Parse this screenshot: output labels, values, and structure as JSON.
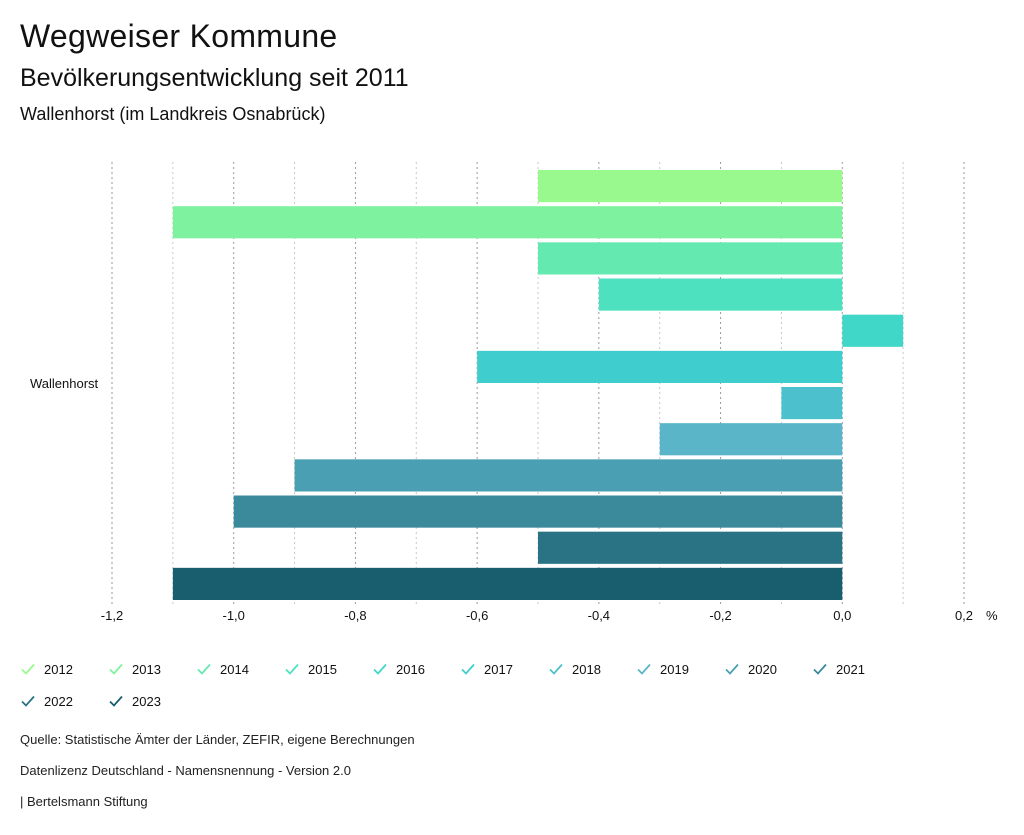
{
  "header": {
    "title": "Wegweiser Kommune",
    "subtitle": "Bevölkerungsentwicklung seit 2011",
    "region": "Wallenhorst (im Landkreis Osnabrück)"
  },
  "chart_data": {
    "type": "bar",
    "orientation": "horizontal",
    "categories": [
      "Wallenhorst"
    ],
    "series": [
      {
        "name": "2012",
        "values": [
          -0.5
        ],
        "color": "#9af98e"
      },
      {
        "name": "2013",
        "values": [
          -1.1
        ],
        "color": "#7ff2a0"
      },
      {
        "name": "2014",
        "values": [
          -0.5
        ],
        "color": "#64e9b0"
      },
      {
        "name": "2015",
        "values": [
          -0.4
        ],
        "color": "#4de1c0"
      },
      {
        "name": "2016",
        "values": [
          0.1
        ],
        "color": "#40d6c8"
      },
      {
        "name": "2017",
        "values": [
          -0.6
        ],
        "color": "#40cdce"
      },
      {
        "name": "2018",
        "values": [
          -0.1
        ],
        "color": "#4dc0cd"
      },
      {
        "name": "2019",
        "values": [
          -0.3
        ],
        "color": "#5ab5c8"
      },
      {
        "name": "2020",
        "values": [
          -0.9
        ],
        "color": "#4aa0b2"
      },
      {
        "name": "2021",
        "values": [
          -1.0
        ],
        "color": "#3a8a9c"
      },
      {
        "name": "2022",
        "values": [
          -0.5
        ],
        "color": "#2a7385"
      },
      {
        "name": "2023",
        "values": [
          -1.1
        ],
        "color": "#195e6e"
      }
    ],
    "xlim": [
      -1.2,
      0.2
    ],
    "x_ticks": [
      "-1,2",
      "-1,0",
      "-0,8",
      "-0,6",
      "-0,4",
      "-0,2",
      "0,0",
      "0,2"
    ],
    "x_tick_values": [
      -1.2,
      -1.0,
      -0.8,
      -0.6,
      -0.4,
      -0.2,
      0.0,
      0.2
    ],
    "unit_label": "%",
    "grid": true,
    "legend_position": "bottom"
  },
  "footer": {
    "source": "Quelle: Statistische Ämter der Länder, ZEFIR, eigene Berechnungen",
    "license": "Datenlizenz Deutschland - Namensnennung - Version 2.0",
    "publisher": "| Bertelsmann Stiftung"
  }
}
